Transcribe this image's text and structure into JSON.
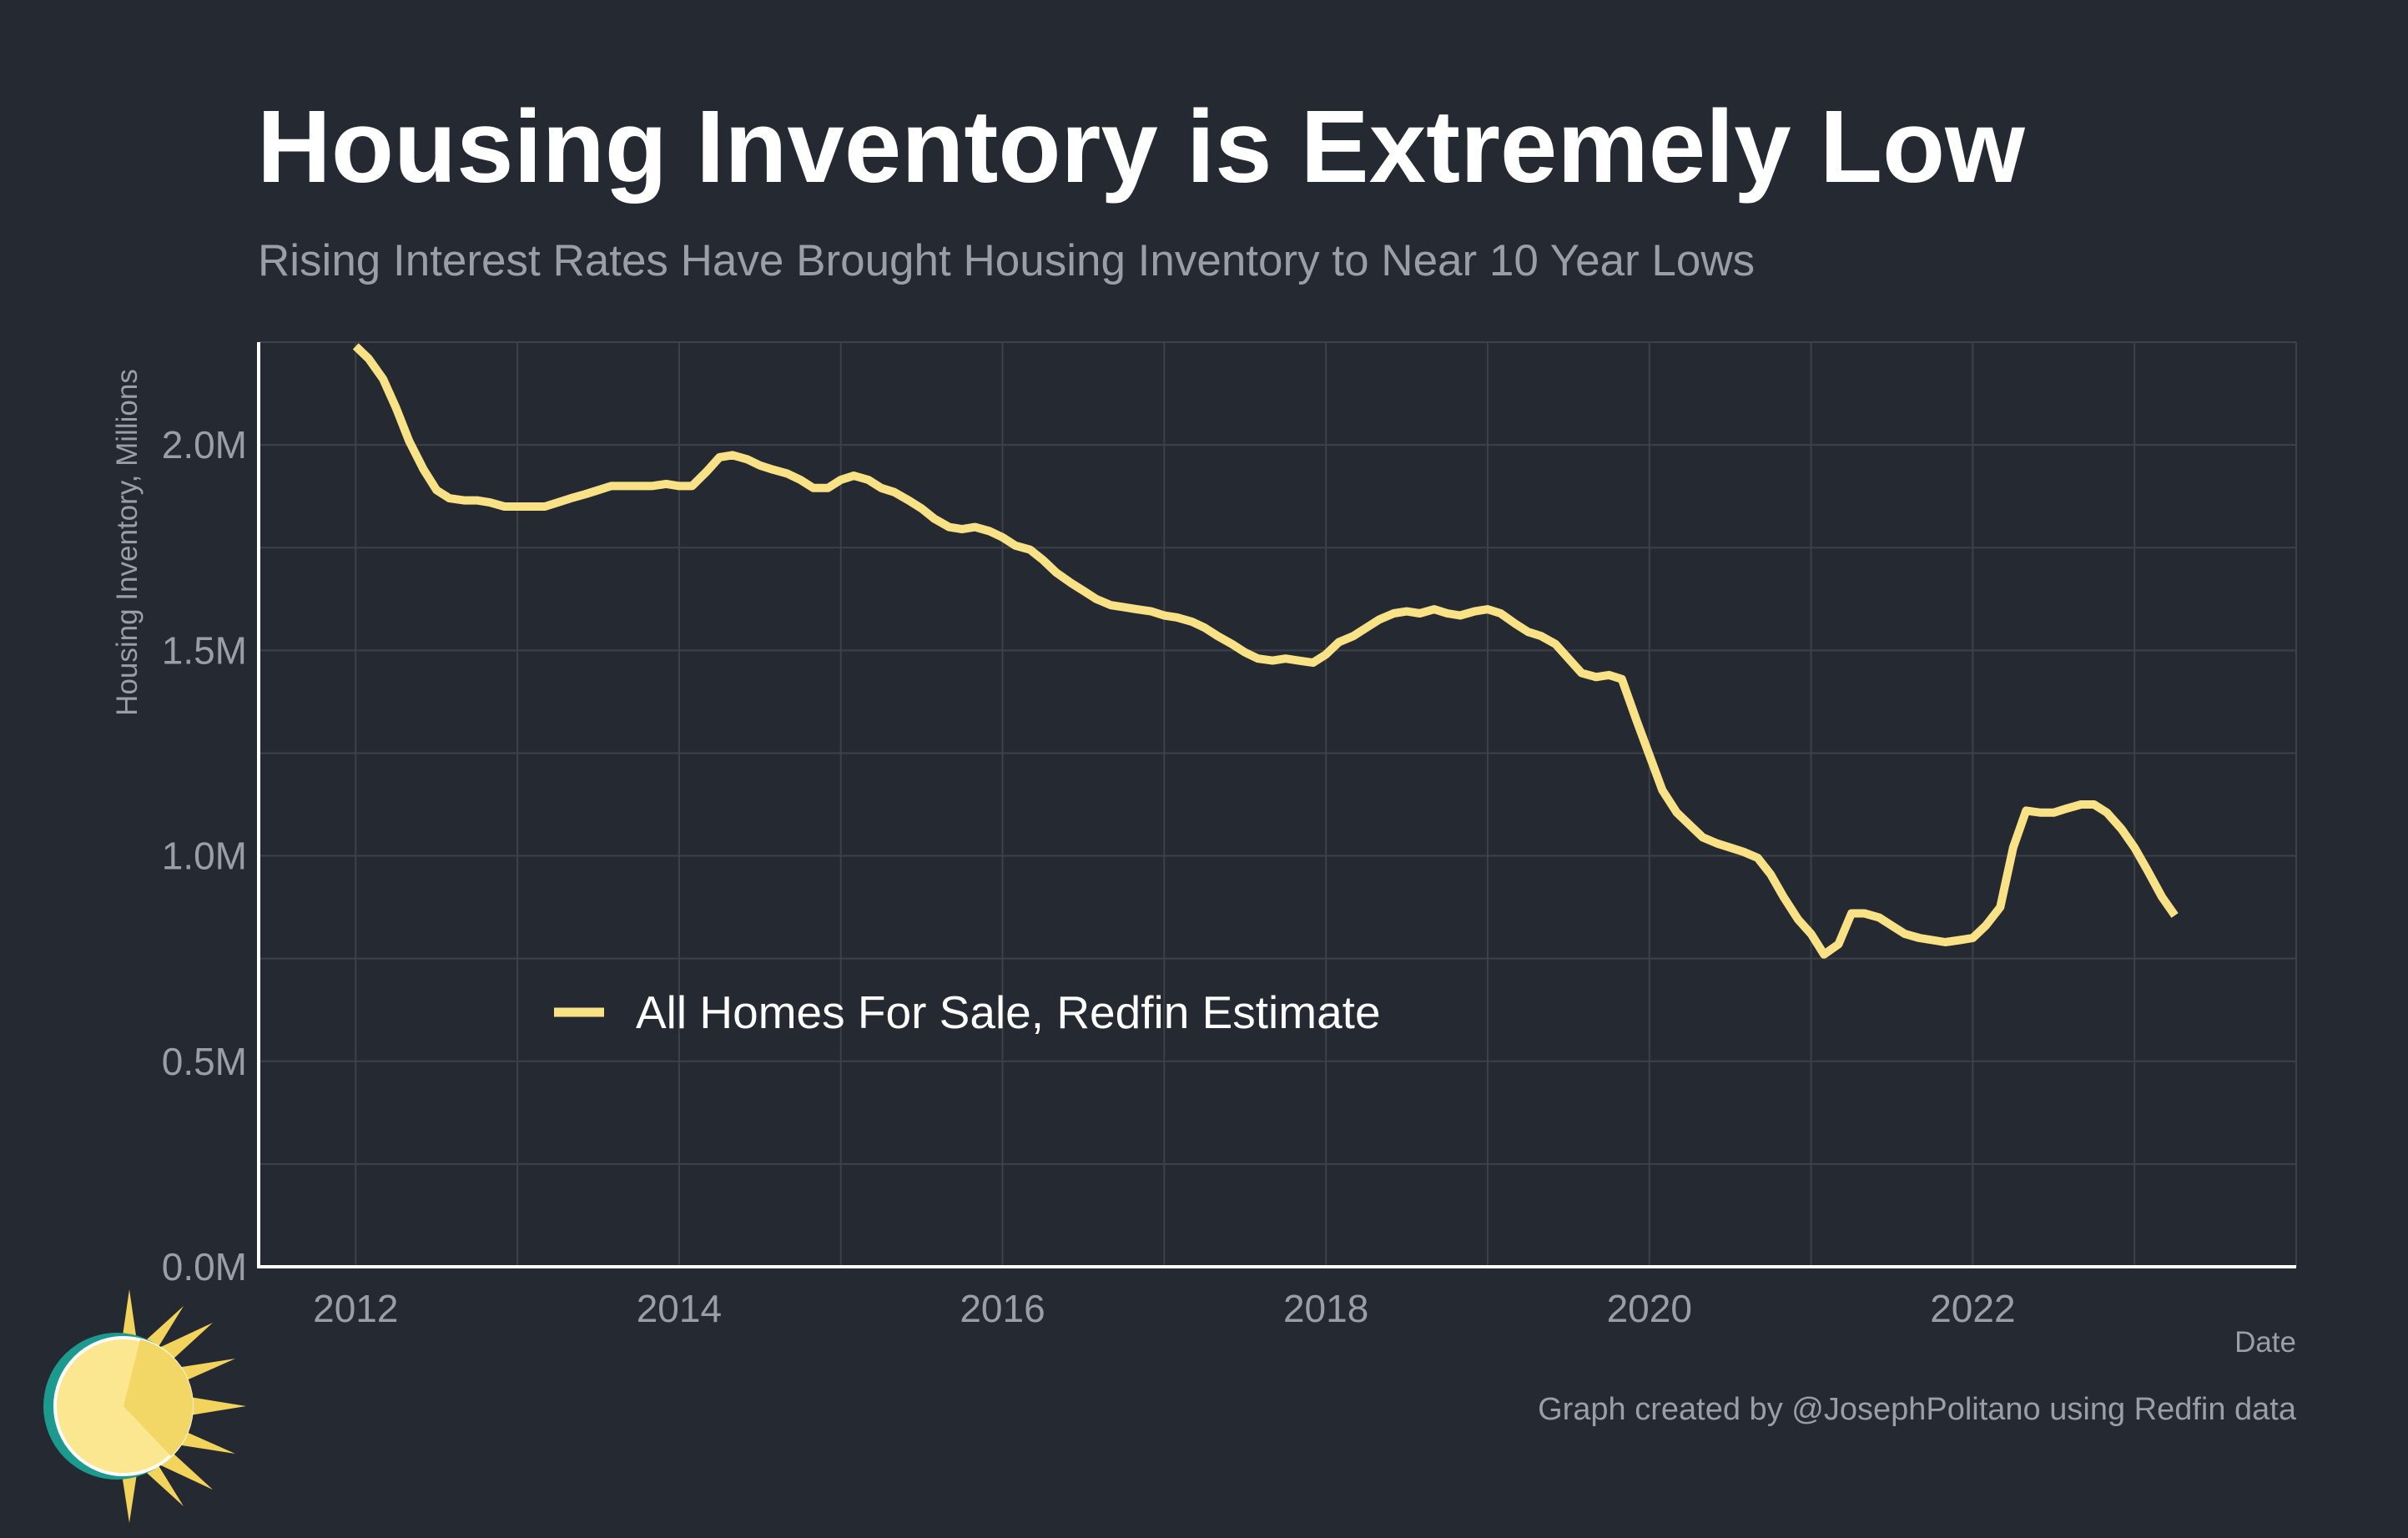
{
  "title": "Housing Inventory is Extremely Low",
  "subtitle": "Rising Interest Rates Have Brought Housing Inventory to Near 10 Year Lows",
  "caption": "Graph created by @JosephPolitano using Redfin data",
  "colors": {
    "background": "#252931",
    "line": "#f9e285",
    "grid": "#3c414a",
    "axis": "#ffffff",
    "muted_text": "#9a9ea7"
  },
  "chart_data": {
    "type": "line",
    "xlabel": "Date",
    "ylabel": "Housing Inventory, Millions",
    "xlim": [
      2011.4,
      2024.0
    ],
    "ylim": [
      0,
      2.25
    ],
    "x_ticks": [
      2012,
      2014,
      2016,
      2018,
      2020,
      2022
    ],
    "y_ticks": [
      {
        "value": 0.0,
        "label": "0.0M"
      },
      {
        "value": 0.5,
        "label": "0.5M"
      },
      {
        "value": 1.0,
        "label": "1.0M"
      },
      {
        "value": 1.5,
        "label": "1.5M"
      },
      {
        "value": 2.0,
        "label": "2.0M"
      }
    ],
    "grid": true,
    "legend_position": "lower-left",
    "series": [
      {
        "name": "All Homes For Sale, Redfin Estimate",
        "color": "#f9e285",
        "points": [
          [
            2012.0,
            2.24
          ],
          [
            2012.08,
            2.21
          ],
          [
            2012.17,
            2.16
          ],
          [
            2012.25,
            2.09
          ],
          [
            2012.33,
            2.01
          ],
          [
            2012.42,
            1.94
          ],
          [
            2012.5,
            1.89
          ],
          [
            2012.58,
            1.87
          ],
          [
            2012.67,
            1.865
          ],
          [
            2012.75,
            1.865
          ],
          [
            2012.83,
            1.86
          ],
          [
            2012.92,
            1.85
          ],
          [
            2013.0,
            1.85
          ],
          [
            2013.08,
            1.85
          ],
          [
            2013.17,
            1.85
          ],
          [
            2013.25,
            1.86
          ],
          [
            2013.33,
            1.87
          ],
          [
            2013.42,
            1.88
          ],
          [
            2013.5,
            1.89
          ],
          [
            2013.58,
            1.9
          ],
          [
            2013.67,
            1.9
          ],
          [
            2013.75,
            1.9
          ],
          [
            2013.83,
            1.9
          ],
          [
            2013.92,
            1.905
          ],
          [
            2014.0,
            1.9
          ],
          [
            2014.08,
            1.9
          ],
          [
            2014.17,
            1.935
          ],
          [
            2014.25,
            1.97
          ],
          [
            2014.33,
            1.975
          ],
          [
            2014.42,
            1.965
          ],
          [
            2014.5,
            1.95
          ],
          [
            2014.58,
            1.94
          ],
          [
            2014.67,
            1.93
          ],
          [
            2014.75,
            1.915
          ],
          [
            2014.83,
            1.895
          ],
          [
            2014.92,
            1.895
          ],
          [
            2015.0,
            1.915
          ],
          [
            2015.08,
            1.925
          ],
          [
            2015.17,
            1.915
          ],
          [
            2015.25,
            1.895
          ],
          [
            2015.33,
            1.885
          ],
          [
            2015.42,
            1.865
          ],
          [
            2015.5,
            1.845
          ],
          [
            2015.58,
            1.82
          ],
          [
            2015.67,
            1.8
          ],
          [
            2015.75,
            1.795
          ],
          [
            2015.83,
            1.8
          ],
          [
            2015.92,
            1.79
          ],
          [
            2016.0,
            1.775
          ],
          [
            2016.08,
            1.755
          ],
          [
            2016.17,
            1.745
          ],
          [
            2016.25,
            1.72
          ],
          [
            2016.33,
            1.69
          ],
          [
            2016.42,
            1.665
          ],
          [
            2016.5,
            1.645
          ],
          [
            2016.58,
            1.625
          ],
          [
            2016.67,
            1.61
          ],
          [
            2016.75,
            1.605
          ],
          [
            2016.83,
            1.6
          ],
          [
            2016.92,
            1.595
          ],
          [
            2017.0,
            1.585
          ],
          [
            2017.08,
            1.58
          ],
          [
            2017.17,
            1.57
          ],
          [
            2017.25,
            1.555
          ],
          [
            2017.33,
            1.535
          ],
          [
            2017.42,
            1.515
          ],
          [
            2017.5,
            1.495
          ],
          [
            2017.58,
            1.48
          ],
          [
            2017.67,
            1.475
          ],
          [
            2017.75,
            1.48
          ],
          [
            2017.83,
            1.475
          ],
          [
            2017.92,
            1.47
          ],
          [
            2018.0,
            1.49
          ],
          [
            2018.08,
            1.52
          ],
          [
            2018.17,
            1.535
          ],
          [
            2018.25,
            1.555
          ],
          [
            2018.33,
            1.575
          ],
          [
            2018.42,
            1.59
          ],
          [
            2018.5,
            1.595
          ],
          [
            2018.58,
            1.59
          ],
          [
            2018.67,
            1.6
          ],
          [
            2018.75,
            1.59
          ],
          [
            2018.83,
            1.585
          ],
          [
            2018.92,
            1.595
          ],
          [
            2019.0,
            1.6
          ],
          [
            2019.08,
            1.59
          ],
          [
            2019.17,
            1.565
          ],
          [
            2019.25,
            1.545
          ],
          [
            2019.33,
            1.535
          ],
          [
            2019.42,
            1.515
          ],
          [
            2019.5,
            1.48
          ],
          [
            2019.58,
            1.445
          ],
          [
            2019.67,
            1.435
          ],
          [
            2019.75,
            1.44
          ],
          [
            2019.83,
            1.43
          ],
          [
            2019.92,
            1.33
          ],
          [
            2020.0,
            1.245
          ],
          [
            2020.08,
            1.16
          ],
          [
            2020.17,
            1.105
          ],
          [
            2020.25,
            1.075
          ],
          [
            2020.33,
            1.045
          ],
          [
            2020.42,
            1.03
          ],
          [
            2020.5,
            1.02
          ],
          [
            2020.58,
            1.01
          ],
          [
            2020.67,
            0.995
          ],
          [
            2020.75,
            0.955
          ],
          [
            2020.83,
            0.9
          ],
          [
            2020.92,
            0.845
          ],
          [
            2021.0,
            0.81
          ],
          [
            2021.08,
            0.76
          ],
          [
            2021.17,
            0.785
          ],
          [
            2021.25,
            0.86
          ],
          [
            2021.33,
            0.86
          ],
          [
            2021.42,
            0.85
          ],
          [
            2021.5,
            0.83
          ],
          [
            2021.58,
            0.81
          ],
          [
            2021.67,
            0.8
          ],
          [
            2021.75,
            0.795
          ],
          [
            2021.83,
            0.79
          ],
          [
            2021.92,
            0.795
          ],
          [
            2022.0,
            0.8
          ],
          [
            2022.08,
            0.83
          ],
          [
            2022.17,
            0.875
          ],
          [
            2022.25,
            1.02
          ],
          [
            2022.33,
            1.11
          ],
          [
            2022.42,
            1.105
          ],
          [
            2022.5,
            1.105
          ],
          [
            2022.58,
            1.115
          ],
          [
            2022.67,
            1.125
          ],
          [
            2022.75,
            1.125
          ],
          [
            2022.83,
            1.105
          ],
          [
            2022.92,
            1.065
          ],
          [
            2023.0,
            1.02
          ],
          [
            2023.08,
            0.965
          ],
          [
            2023.17,
            0.9
          ],
          [
            2023.25,
            0.855
          ]
        ]
      }
    ]
  }
}
